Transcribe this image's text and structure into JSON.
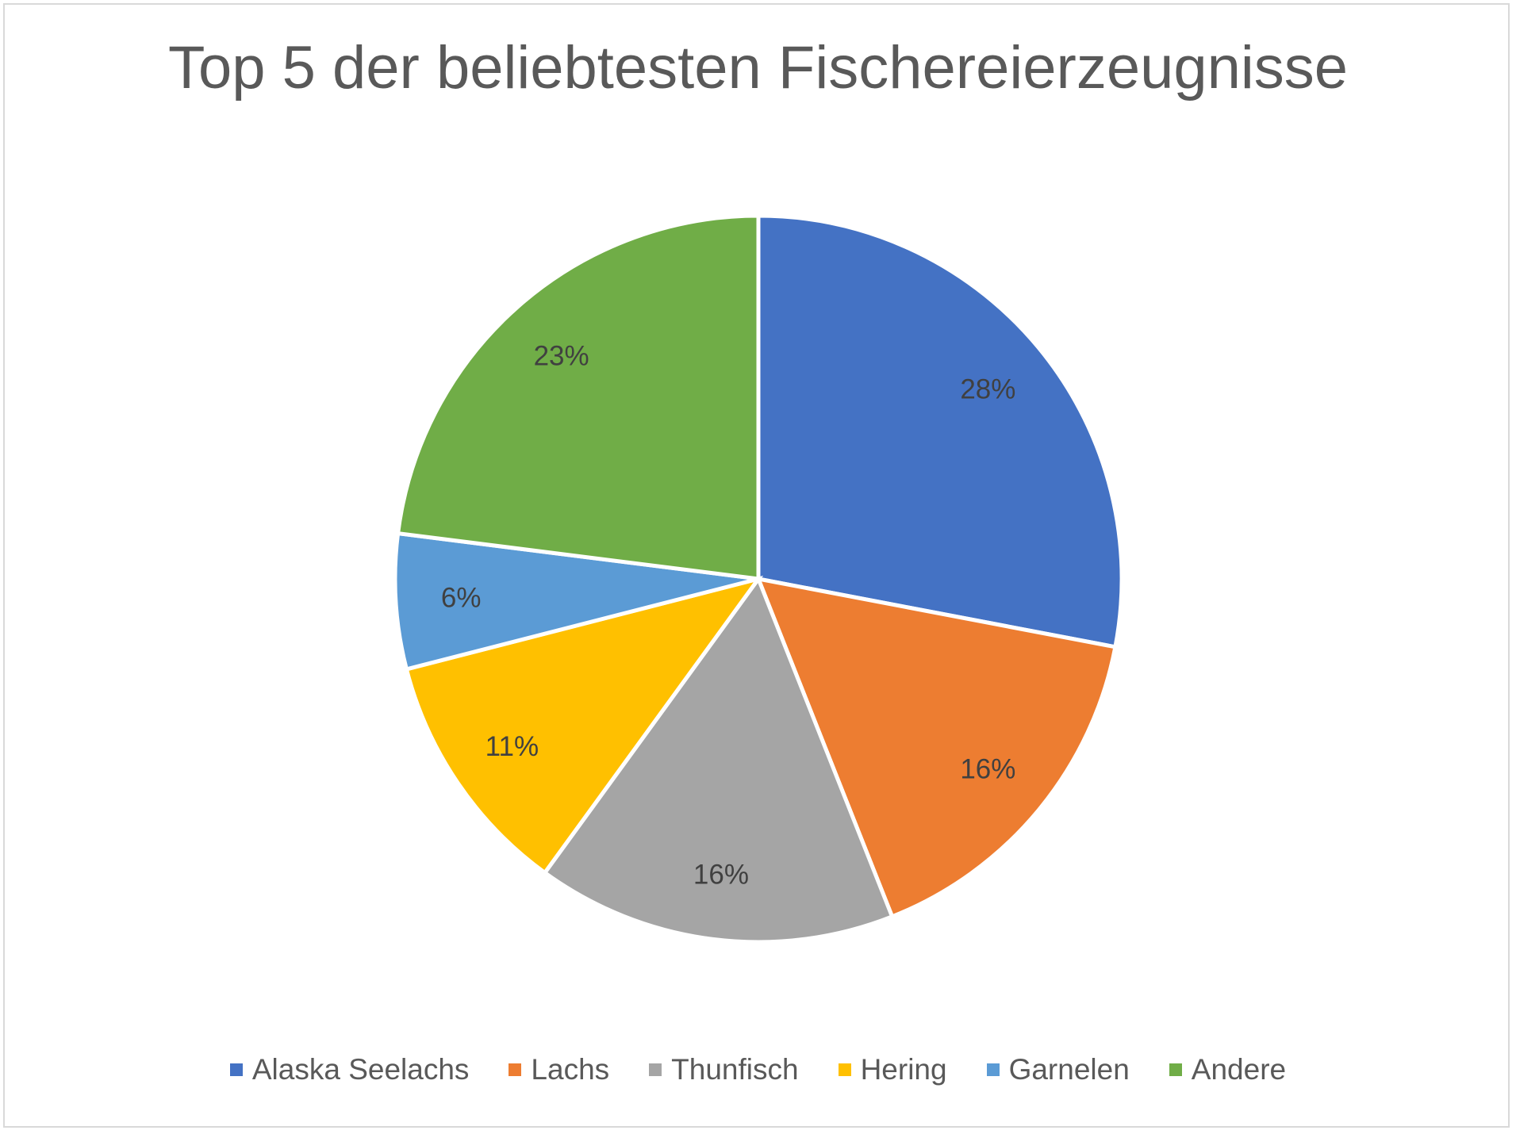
{
  "chart_data": {
    "type": "pie",
    "title": "Top 5 der beliebtesten Fischereierzeugnisse",
    "categories": [
      "Alaska Seelachs",
      "Lachs",
      "Thunfisch",
      "Hering",
      "Garnelen",
      "Andere"
    ],
    "values": [
      28,
      16,
      16,
      11,
      6,
      23
    ],
    "data_labels": [
      "28%",
      "16%",
      "16%",
      "11%",
      "6%",
      "23%"
    ],
    "colors": [
      "#4472C4",
      "#ED7D31",
      "#A5A5A5",
      "#FFC000",
      "#5B9BD5",
      "#70AD47"
    ],
    "start_angle": "12 o'clock",
    "direction": "clockwise",
    "legend_position": "bottom"
  }
}
